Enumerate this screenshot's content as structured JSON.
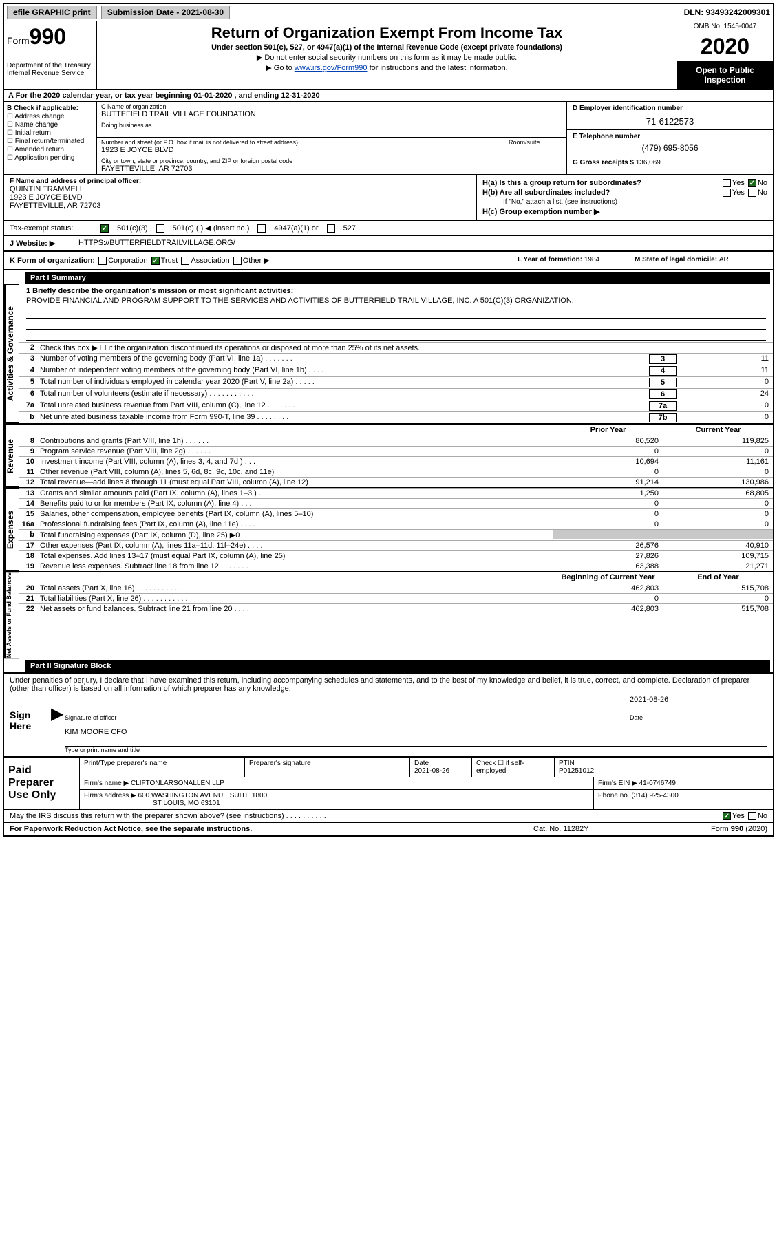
{
  "topbar": {
    "efile": "efile GRAPHIC print",
    "sub_label": "Submission Date - ",
    "sub_date": "2021-08-30",
    "dln": "DLN: 93493242009301"
  },
  "header": {
    "form_word": "Form",
    "form_num": "990",
    "dept": "Department of the Treasury\nInternal Revenue Service",
    "title": "Return of Organization Exempt From Income Tax",
    "sub": "Under section 501(c), 527, or 4947(a)(1) of the Internal Revenue Code (except private foundations)",
    "note1": "▶ Do not enter social security numbers on this form as it may be made public.",
    "note2_pre": "▶ Go to ",
    "note2_link": "www.irs.gov/Form990",
    "note2_post": " for instructions and the latest information.",
    "omb": "OMB No. 1545-0047",
    "year": "2020",
    "inspect": "Open to Public Inspection"
  },
  "period": "A For the 2020 calendar year, or tax year beginning 01-01-2020   , and ending 12-31-2020",
  "boxB": {
    "lbl": "B Check if applicable:",
    "opts": [
      "Address change",
      "Name change",
      "Initial return",
      "Final return/terminated",
      "Amended return",
      "Application pending"
    ]
  },
  "boxC": {
    "lbl": "C Name of organization",
    "name": "BUTTEFIELD TRAIL VILLAGE FOUNDATION",
    "dba_lbl": "Doing business as",
    "addr_lbl": "Number and street (or P.O. box if mail is not delivered to street address)",
    "addr": "1923 E JOYCE BLVD",
    "room_lbl": "Room/suite",
    "city_lbl": "City or town, state or province, country, and ZIP or foreign postal code",
    "city": "FAYETTEVILLE, AR  72703"
  },
  "boxD": {
    "lbl": "D Employer identification number",
    "val": "71-6122573"
  },
  "boxE": {
    "lbl": "E Telephone number",
    "val": "(479) 695-8056"
  },
  "boxG": {
    "lbl": "G Gross receipts $ ",
    "val": "136,069"
  },
  "boxF": {
    "lbl": "F  Name and address of principal officer:",
    "name": "QUINTIN TRAMMELL",
    "addr1": "1923 E JOYCE BLVD",
    "addr2": "FAYETTEVILLE, AR  72703"
  },
  "boxH": {
    "a": "H(a)  Is this a group return for subordinates?",
    "b": "H(b)  Are all subordinates included?",
    "bnote": "If \"No,\" attach a list. (see instructions)",
    "c": "H(c)  Group exemption number ▶",
    "yes": "Yes",
    "no": "No"
  },
  "taxex": {
    "lbl": "Tax-exempt status:",
    "o1": "501(c)(3)",
    "o2": "501(c) (  ) ◀ (insert no.)",
    "o3": "4947(a)(1) or",
    "o4": "527"
  },
  "website": {
    "lbl": "J   Website: ▶",
    "val": "HTTPS://BUTTERFIELDTRAILVILLAGE.ORG/"
  },
  "formorg": {
    "lbl": "K Form of organization:",
    "o1": "Corporation",
    "o2": "Trust",
    "o3": "Association",
    "o4": "Other ▶",
    "L_lbl": "L Year of formation: ",
    "L_val": "1984",
    "M_lbl": "M State of legal domicile: ",
    "M_val": "AR"
  },
  "part1": {
    "hdr": "Part I      Summary"
  },
  "vtabs": {
    "gov": "Activities & Governance",
    "rev": "Revenue",
    "exp": "Expenses",
    "net": "Net Assets or Fund Balances"
  },
  "mission": {
    "lbl": "1  Briefly describe the organization's mission or most significant activities:",
    "text": "PROVIDE FINANCIAL AND PROGRAM SUPPORT TO THE SERVICES AND ACTIVITIES OF BUTTERFIELD TRAIL VILLAGE, INC. A 501(C)(3) ORGANIZATION."
  },
  "lines_gov": [
    {
      "n": "2",
      "desc": "Check this box ▶ ☐  if the organization discontinued its operations or disposed of more than 25% of its net assets.",
      "box": "",
      "val": ""
    },
    {
      "n": "3",
      "desc": "Number of voting members of the governing body (Part VI, line 1a)   .    .    .    .    .    .    .",
      "box": "3",
      "val": "11"
    },
    {
      "n": "4",
      "desc": "Number of independent voting members of the governing body (Part VI, line 1b)  .    .    .    .",
      "box": "4",
      "val": "11"
    },
    {
      "n": "5",
      "desc": "Total number of individuals employed in calendar year 2020 (Part V, line 2a)  .    .    .    .    .",
      "box": "5",
      "val": "0"
    },
    {
      "n": "6",
      "desc": "Total number of volunteers (estimate if necessary)    .    .    .    .    .    .    .    .    .    .    .",
      "box": "6",
      "val": "24"
    },
    {
      "n": "7a",
      "desc": "Total unrelated business revenue from Part VIII, column (C), line 12  .    .    .    .    .    .    .",
      "box": "7a",
      "val": "0"
    },
    {
      "n": "b",
      "desc": "Net unrelated business taxable income from Form 990-T, line 39    .    .    .    .    .    .    .    .",
      "box": "7b",
      "val": "0"
    }
  ],
  "yearhdr": {
    "py": "Prior Year",
    "cy": "Current Year"
  },
  "lines_rev": [
    {
      "n": "8",
      "desc": "Contributions and grants (Part VIII, line 1h)    .    .    .    .    .    .",
      "py": "80,520",
      "cy": "119,825"
    },
    {
      "n": "9",
      "desc": "Program service revenue (Part VIII, line 2g)    .    .    .    .    .    .",
      "py": "0",
      "cy": "0"
    },
    {
      "n": "10",
      "desc": "Investment income (Part VIII, column (A), lines 3, 4, and 7d )    .    .    .",
      "py": "10,694",
      "cy": "11,161"
    },
    {
      "n": "11",
      "desc": "Other revenue (Part VIII, column (A), lines 5, 6d, 8c, 9c, 10c, and 11e)",
      "py": "0",
      "cy": "0"
    },
    {
      "n": "12",
      "desc": "Total revenue—add lines 8 through 11 (must equal Part VIII, column (A), line 12)",
      "py": "91,214",
      "cy": "130,986"
    }
  ],
  "lines_exp": [
    {
      "n": "13",
      "desc": "Grants and similar amounts paid (Part IX, column (A), lines 1–3 )   .    .    .",
      "py": "1,250",
      "cy": "68,805"
    },
    {
      "n": "14",
      "desc": "Benefits paid to or for members (Part IX, column (A), line 4)    .    .    .",
      "py": "0",
      "cy": "0"
    },
    {
      "n": "15",
      "desc": "Salaries, other compensation, employee benefits (Part IX, column (A), lines 5–10)",
      "py": "0",
      "cy": "0"
    },
    {
      "n": "16a",
      "desc": "Professional fundraising fees (Part IX, column (A), line 11e)    .    .    .    .",
      "py": "0",
      "cy": "0"
    },
    {
      "n": "b",
      "desc": "Total fundraising expenses (Part IX, column (D), line 25) ▶0",
      "py": "",
      "cy": "",
      "shade": true
    },
    {
      "n": "17",
      "desc": "Other expenses (Part IX, column (A), lines 11a–11d, 11f–24e)    .    .    .    .",
      "py": "26,576",
      "cy": "40,910"
    },
    {
      "n": "18",
      "desc": "Total expenses. Add lines 13–17 (must equal Part IX, column (A), line 25)",
      "py": "27,826",
      "cy": "109,715"
    },
    {
      "n": "19",
      "desc": "Revenue less expenses. Subtract line 18 from line 12  .    .    .    .    .    .    .",
      "py": "63,388",
      "cy": "21,271"
    }
  ],
  "yearhdr2": {
    "py": "Beginning of Current Year",
    "cy": "End of Year"
  },
  "lines_net": [
    {
      "n": "20",
      "desc": "Total assets (Part X, line 16)  .    .    .    .    .    .    .    .    .    .    .    .",
      "py": "462,803",
      "cy": "515,708"
    },
    {
      "n": "21",
      "desc": "Total liabilities (Part X, line 26)  .    .    .    .    .    .    .    .    .    .    .",
      "py": "0",
      "cy": "0"
    },
    {
      "n": "22",
      "desc": "Net assets or fund balances. Subtract line 21 from line 20   .    .    .    .",
      "py": "462,803",
      "cy": "515,708"
    }
  ],
  "part2": {
    "hdr": "Part II      Signature Block"
  },
  "sig": {
    "decl": "Under penalties of perjury, I declare that I have examined this return, including accompanying schedules and statements, and to the best of my knowledge and belief, it is true, correct, and complete. Declaration of preparer (other than officer) is based on all information of which preparer has any knowledge.",
    "here": "Sign Here",
    "sig_lbl": "Signature of officer",
    "date_lbl": "Date",
    "date": "2021-08-26",
    "name": "KIM MOORE CFO",
    "name_lbl": "Type or print name and title"
  },
  "prep": {
    "lbl": "Paid Preparer Use Only",
    "c1": "Print/Type preparer's name",
    "c2": "Preparer's signature",
    "c3_lbl": "Date",
    "c3": "2021-08-26",
    "c4": "Check ☐ if self-employed",
    "c5_lbl": "PTIN",
    "c5": "P01251012",
    "firm_lbl": "Firm's name    ▶",
    "firm": "CLIFTONLARSONALLEN LLP",
    "ein_lbl": "Firm's EIN ▶",
    "ein": "41-0746749",
    "addr_lbl": "Firm's address ▶",
    "addr1": "600 WASHINGTON AVENUE SUITE 1800",
    "addr2": "ST LOUIS, MO  63101",
    "phone_lbl": "Phone no. ",
    "phone": "(314) 925-4300",
    "discuss": "May the IRS discuss this return with the preparer shown above? (see instructions)   .    .    .    .    .    .    .    .    .    .",
    "yes": "Yes",
    "no": "No"
  },
  "footer": {
    "l": "For Paperwork Reduction Act Notice, see the separate instructions.",
    "m": "Cat. No. 11282Y",
    "r": "Form 990 (2020)"
  }
}
